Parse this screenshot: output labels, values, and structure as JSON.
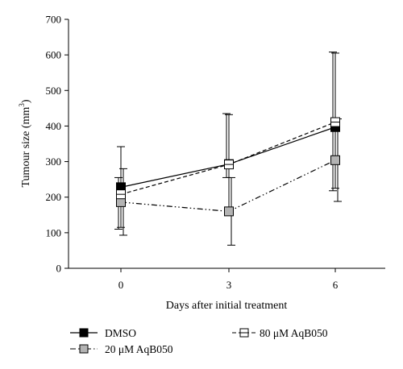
{
  "chart_data": {
    "type": "line",
    "title": "",
    "xlabel": "Days after initial treatment",
    "ylabel_main": "Tumour size (mm",
    "ylabel_sup": "3",
    "ylabel_end": ")",
    "x": [
      0,
      3,
      6
    ],
    "x_ticks": [
      "0",
      "3",
      "6"
    ],
    "ylim": [
      0,
      700
    ],
    "y_ticks": [
      "0",
      "100",
      "200",
      "300",
      "400",
      "500",
      "600",
      "700"
    ],
    "grid": false,
    "series": [
      {
        "name": "DMSO",
        "values": [
          228,
          293,
          397
        ],
        "err_low": [
          115,
          160,
          225
        ],
        "err_high": [
          342,
          432,
          605
        ],
        "marker_fill": "#000000",
        "line_style": "solid"
      },
      {
        "name": "20 μM AqB050",
        "values": [
          186,
          160,
          304
        ],
        "err_low": [
          93,
          65,
          188
        ],
        "err_high": [
          280,
          255,
          420
        ],
        "marker_fill": "#b3b3b3",
        "line_style": "dashdotdot"
      },
      {
        "name": "80 μM AqB050",
        "values": [
          208,
          292,
          411
        ],
        "err_low": [
          110,
          255,
          218
        ],
        "err_high": [
          255,
          435,
          608
        ],
        "marker_fill": "#ffffff",
        "marker_style": "half",
        "line_style": "dashed"
      }
    ],
    "legend": {
      "placement": "bottom"
    }
  }
}
